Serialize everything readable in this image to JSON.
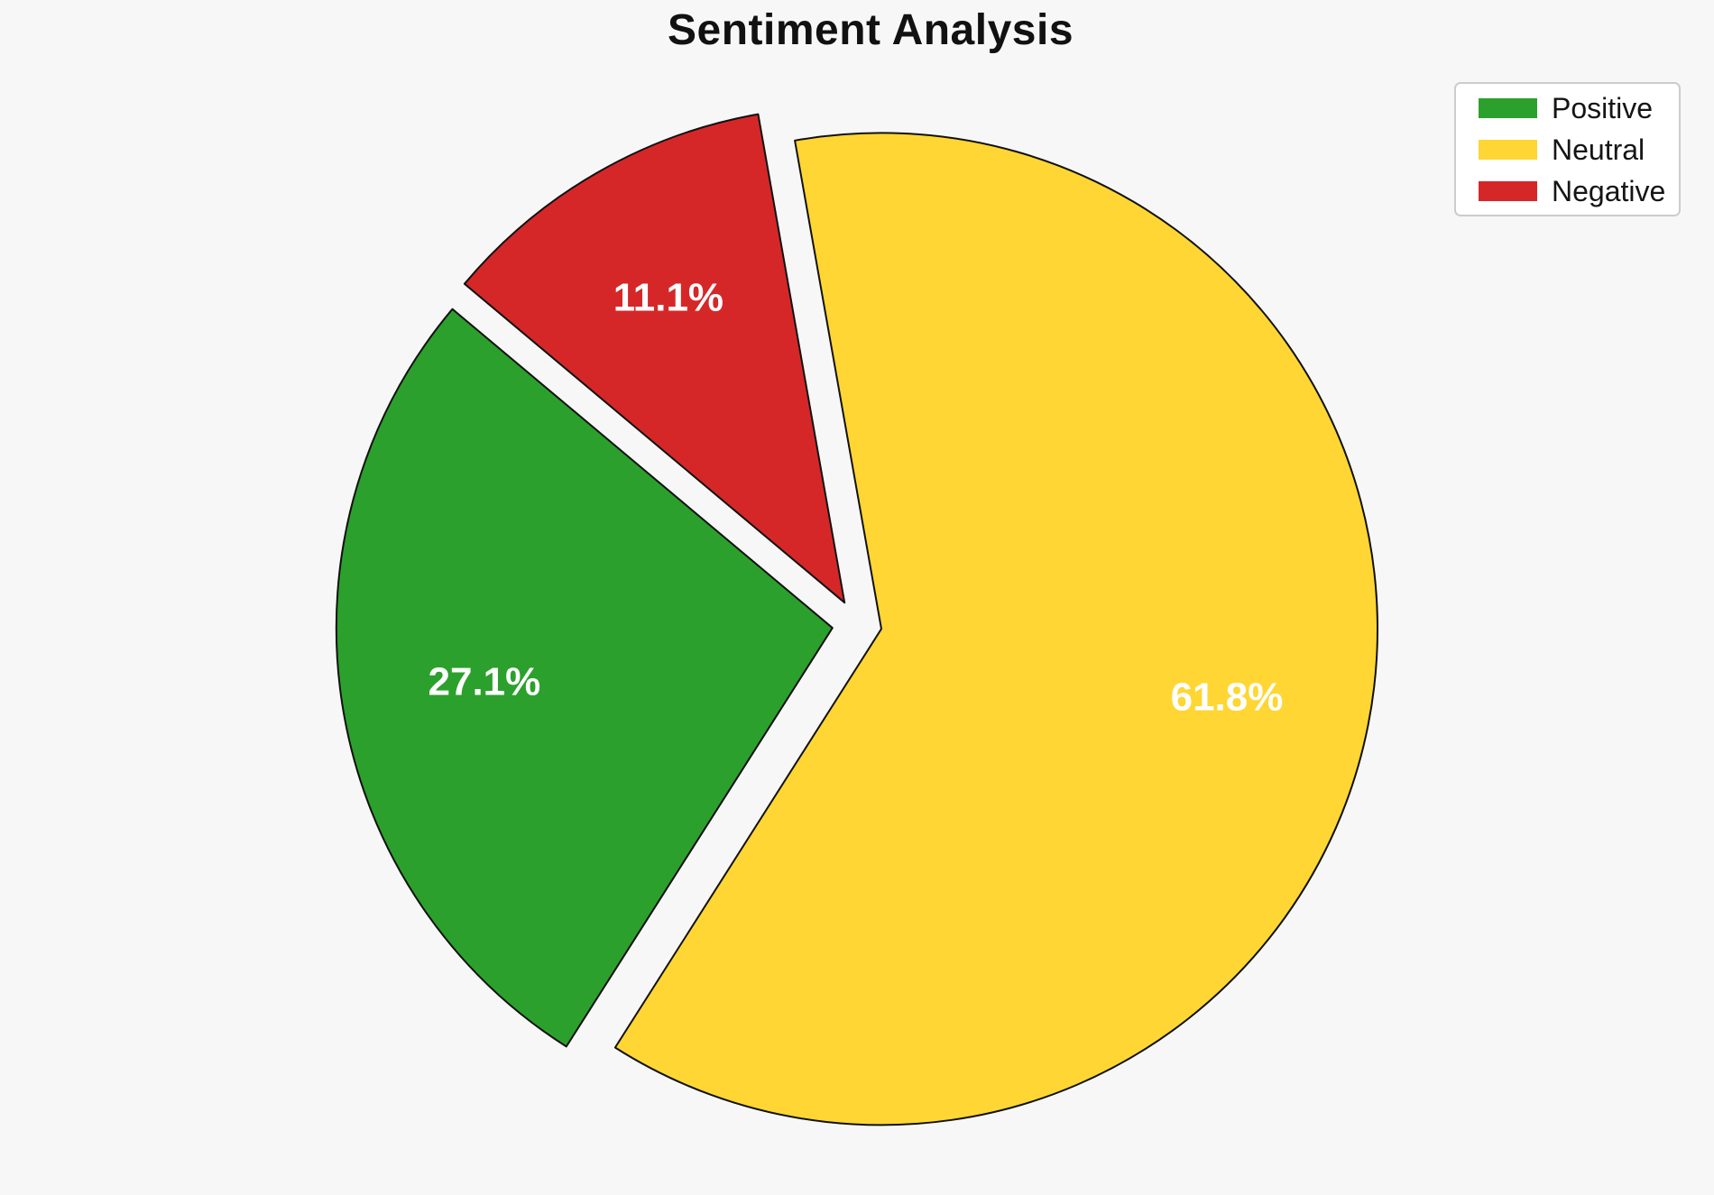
{
  "chart_data": {
    "type": "pie",
    "title": "Sentiment Analysis",
    "categories": [
      "Positive",
      "Neutral",
      "Negative"
    ],
    "values": [
      27.1,
      61.8,
      11.1
    ],
    "slices": [
      {
        "label": "Positive",
        "value": 27.1,
        "pct_label": "27.1%",
        "color": "#2ca02c"
      },
      {
        "label": "Neutral",
        "value": 61.8,
        "pct_label": "61.8%",
        "color": "#ffd633"
      },
      {
        "label": "Negative",
        "value": 11.1,
        "pct_label": "11.1%",
        "color": "#d62728"
      }
    ],
    "start_angle": 140,
    "counterclock": true,
    "explode": 0.05,
    "pct_distance": 0.71,
    "edge_color": "#111111",
    "edge_width": 2,
    "label_text_color": "#ffffff",
    "background_color": "#f7f7f7",
    "legend_position": "upper right",
    "legend_border_color": "#cccccc"
  }
}
